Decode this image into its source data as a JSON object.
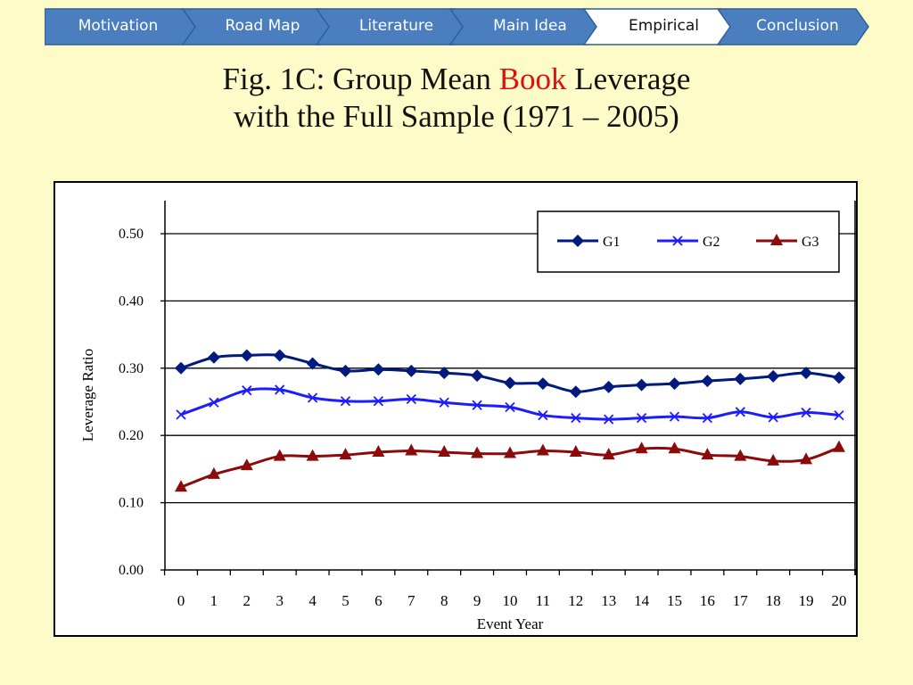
{
  "nav": {
    "items": [
      {
        "label": "Motivation",
        "active": false
      },
      {
        "label": "Road Map",
        "active": false
      },
      {
        "label": "Literature",
        "active": false
      },
      {
        "label": "Main Idea",
        "active": false
      },
      {
        "label": "Empirical",
        "active": true
      },
      {
        "label": "Conclusion",
        "active": false
      }
    ],
    "colors": {
      "fill": "#4a7ebf",
      "active_fill": "#ffffff",
      "border": "#2f5f99"
    }
  },
  "title": {
    "part1": "Fig. 1C: Group Mean ",
    "highlight": "Book",
    "part2": " Leverage",
    "line2": "with the Full Sample (1971 – 2005)",
    "highlight_color": "#e0100c"
  },
  "chart_data": {
    "type": "line",
    "xlabel": "Event Year",
    "ylabel": "Leverage Ratio",
    "x": [
      0,
      1,
      2,
      3,
      4,
      5,
      6,
      7,
      8,
      9,
      10,
      11,
      12,
      13,
      14,
      15,
      16,
      17,
      18,
      19,
      20
    ],
    "y_ticks": [
      "0.00",
      "0.10",
      "0.20",
      "0.30",
      "0.40",
      "0.50"
    ],
    "ylim": [
      0,
      0.5
    ],
    "grid": true,
    "legend_position": "top-right",
    "series": [
      {
        "name": "G1",
        "marker": "diamond",
        "color": "#001a80",
        "values": [
          0.3,
          0.316,
          0.319,
          0.319,
          0.307,
          0.296,
          0.298,
          0.296,
          0.293,
          0.289,
          0.278,
          0.277,
          0.265,
          0.272,
          0.275,
          0.277,
          0.281,
          0.284,
          0.288,
          0.293,
          0.286
        ]
      },
      {
        "name": "G2",
        "marker": "x",
        "color": "#1c1cff",
        "values": [
          0.231,
          0.249,
          0.267,
          0.268,
          0.256,
          0.251,
          0.251,
          0.254,
          0.249,
          0.245,
          0.242,
          0.23,
          0.226,
          0.224,
          0.226,
          0.228,
          0.226,
          0.235,
          0.227,
          0.234,
          0.23
        ]
      },
      {
        "name": "G3",
        "marker": "triangle",
        "color": "#8b0a0a",
        "values": [
          0.123,
          0.142,
          0.155,
          0.169,
          0.169,
          0.171,
          0.175,
          0.177,
          0.175,
          0.173,
          0.173,
          0.177,
          0.175,
          0.171,
          0.18,
          0.18,
          0.171,
          0.169,
          0.162,
          0.164,
          0.182
        ]
      }
    ]
  }
}
